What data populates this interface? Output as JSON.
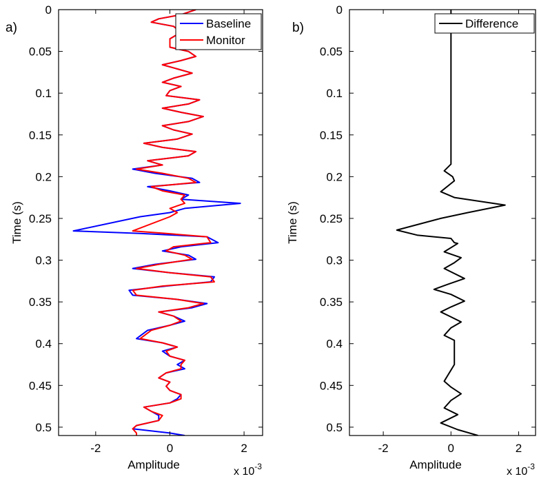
{
  "chart_data": [
    {
      "panel_label": "a)",
      "type": "line",
      "orientation": "vertical-trace",
      "xlabel": "Amplitude",
      "ylabel": "Time (s)",
      "x_scale_note": "x 10",
      "x_scale_exp": "-3",
      "xlim": [
        -3,
        2.5
      ],
      "ylim": [
        0,
        0.51
      ],
      "y_reversed": true,
      "xticks": [
        -2,
        0,
        2
      ],
      "xtick_labels": [
        "-2",
        "0",
        "2"
      ],
      "yticks": [
        0,
        0.05,
        0.1,
        0.15,
        0.2,
        0.25,
        0.3,
        0.35,
        0.4,
        0.45,
        0.5
      ],
      "ytick_labels": [
        "0",
        "0.05",
        "0.1",
        "0.15",
        "0.2",
        "0.25",
        "0.3",
        "0.35",
        "0.4",
        "0.45",
        "0.5"
      ],
      "grid": false,
      "legend_position": "top-right",
      "series": [
        {
          "name": "Baseline",
          "color": "#0000ff",
          "points": [
            [
              0.7,
              0
            ],
            [
              0.3,
              0.006
            ],
            [
              -0.3,
              0.011
            ],
            [
              -0.5,
              0.015
            ],
            [
              0.1,
              0.02
            ],
            [
              0.3,
              0.027
            ],
            [
              0.0,
              0.035
            ],
            [
              0.0,
              0.04
            ],
            [
              0.0,
              0.045
            ],
            [
              0.5,
              0.05
            ],
            [
              0.7,
              0.056
            ],
            [
              0.3,
              0.061
            ],
            [
              -0.2,
              0.066
            ],
            [
              0.2,
              0.071
            ],
            [
              0.6,
              0.076
            ],
            [
              0.1,
              0.082
            ],
            [
              -0.2,
              0.087
            ],
            [
              0.3,
              0.092
            ],
            [
              0.0,
              0.097
            ],
            [
              -0.1,
              0.103
            ],
            [
              0.8,
              0.108
            ],
            [
              0.5,
              0.113
            ],
            [
              -0.2,
              0.118
            ],
            [
              0.3,
              0.123
            ],
            [
              0.9,
              0.128
            ],
            [
              0.5,
              0.134
            ],
            [
              -0.2,
              0.139
            ],
            [
              0.1,
              0.144
            ],
            [
              0.6,
              0.149
            ],
            [
              0.2,
              0.155
            ],
            [
              -0.7,
              0.16
            ],
            [
              -0.2,
              0.165
            ],
            [
              0.7,
              0.17
            ],
            [
              0.5,
              0.175
            ],
            [
              -0.6,
              0.181
            ],
            [
              -0.2,
              0.186
            ],
            [
              -1.0,
              0.191
            ],
            [
              -0.4,
              0.196
            ],
            [
              0.6,
              0.202
            ],
            [
              0.8,
              0.207
            ],
            [
              -0.6,
              0.212
            ],
            [
              0.0,
              0.217
            ],
            [
              0.5,
              0.222
            ],
            [
              0.3,
              0.227
            ],
            [
              1.9,
              0.232
            ],
            [
              0.4,
              0.238
            ],
            [
              0.0,
              0.243
            ],
            [
              -0.8,
              0.248
            ],
            [
              -2.6,
              0.265
            ],
            [
              -0.8,
              0.268
            ],
            [
              1.0,
              0.272
            ],
            [
              1.3,
              0.279
            ],
            [
              0.3,
              0.284
            ],
            [
              -0.2,
              0.289
            ],
            [
              0.5,
              0.294
            ],
            [
              0.7,
              0.299
            ],
            [
              -0.4,
              0.305
            ],
            [
              -1.0,
              0.31
            ],
            [
              0.0,
              0.315
            ],
            [
              1.2,
              0.32
            ],
            [
              1.1,
              0.326
            ],
            [
              -0.1,
              0.331
            ],
            [
              -1.1,
              0.336
            ],
            [
              -1.0,
              0.342
            ],
            [
              0.2,
              0.347
            ],
            [
              1.0,
              0.352
            ],
            [
              0.6,
              0.357
            ],
            [
              -0.3,
              0.362
            ],
            [
              0.1,
              0.367
            ],
            [
              0.4,
              0.373
            ],
            [
              0.0,
              0.378
            ],
            [
              -0.6,
              0.384
            ],
            [
              -0.9,
              0.394
            ],
            [
              -0.2,
              0.399
            ],
            [
              0.2,
              0.404
            ],
            [
              -0.2,
              0.409
            ],
            [
              0.0,
              0.415
            ],
            [
              0.4,
              0.42
            ],
            [
              0.2,
              0.425
            ],
            [
              0.4,
              0.43
            ],
            [
              -0.1,
              0.435
            ],
            [
              -0.3,
              0.441
            ],
            [
              0.0,
              0.446
            ],
            [
              -0.1,
              0.451
            ],
            [
              0.0,
              0.456
            ],
            [
              0.3,
              0.461
            ],
            [
              0.2,
              0.466
            ],
            [
              0.0,
              0.471
            ],
            [
              -0.7,
              0.476
            ],
            [
              -0.5,
              0.481
            ],
            [
              -0.3,
              0.486
            ],
            [
              -0.3,
              0.492
            ],
            [
              -0.9,
              0.498
            ],
            [
              -1.0,
              0.502
            ],
            [
              0.0,
              0.507
            ],
            [
              0.4,
              0.51
            ]
          ]
        },
        {
          "name": "Monitor",
          "color": "#ff0000",
          "points": [
            [
              0.7,
              0
            ],
            [
              0.3,
              0.006
            ],
            [
              -0.3,
              0.011
            ],
            [
              -0.5,
              0.015
            ],
            [
              0.1,
              0.02
            ],
            [
              0.3,
              0.027
            ],
            [
              0.0,
              0.035
            ],
            [
              0.0,
              0.04
            ],
            [
              0.0,
              0.045
            ],
            [
              0.5,
              0.05
            ],
            [
              0.7,
              0.056
            ],
            [
              0.3,
              0.061
            ],
            [
              -0.2,
              0.066
            ],
            [
              0.2,
              0.071
            ],
            [
              0.6,
              0.076
            ],
            [
              0.1,
              0.082
            ],
            [
              -0.2,
              0.087
            ],
            [
              0.3,
              0.092
            ],
            [
              0.0,
              0.097
            ],
            [
              -0.1,
              0.103
            ],
            [
              0.8,
              0.108
            ],
            [
              0.5,
              0.113
            ],
            [
              -0.2,
              0.118
            ],
            [
              0.3,
              0.123
            ],
            [
              0.9,
              0.128
            ],
            [
              0.5,
              0.134
            ],
            [
              -0.2,
              0.139
            ],
            [
              0.1,
              0.144
            ],
            [
              0.6,
              0.149
            ],
            [
              0.2,
              0.155
            ],
            [
              -0.7,
              0.16
            ],
            [
              -0.2,
              0.165
            ],
            [
              0.7,
              0.17
            ],
            [
              0.5,
              0.175
            ],
            [
              -0.6,
              0.181
            ],
            [
              -0.2,
              0.186
            ],
            [
              -0.9,
              0.191
            ],
            [
              -0.2,
              0.196
            ],
            [
              0.5,
              0.202
            ],
            [
              0.7,
              0.207
            ],
            [
              -0.5,
              0.212
            ],
            [
              -0.2,
              0.217
            ],
            [
              0.4,
              0.222
            ],
            [
              0.3,
              0.227
            ],
            [
              0.4,
              0.232
            ],
            [
              0.0,
              0.238
            ],
            [
              0.2,
              0.243
            ],
            [
              0.0,
              0.248
            ],
            [
              -1.0,
              0.265
            ],
            [
              -0.1,
              0.268
            ],
            [
              1.0,
              0.272
            ],
            [
              1.1,
              0.279
            ],
            [
              0.1,
              0.284
            ],
            [
              -0.1,
              0.289
            ],
            [
              0.4,
              0.294
            ],
            [
              0.6,
              0.299
            ],
            [
              -0.3,
              0.305
            ],
            [
              -0.9,
              0.31
            ],
            [
              0.0,
              0.315
            ],
            [
              1.1,
              0.32
            ],
            [
              1.2,
              0.326
            ],
            [
              -0.2,
              0.331
            ],
            [
              -1.0,
              0.336
            ],
            [
              -0.9,
              0.342
            ],
            [
              0.2,
              0.347
            ],
            [
              0.9,
              0.352
            ],
            [
              0.5,
              0.357
            ],
            [
              -0.3,
              0.362
            ],
            [
              0.1,
              0.367
            ],
            [
              0.3,
              0.373
            ],
            [
              0.0,
              0.378
            ],
            [
              -0.5,
              0.384
            ],
            [
              -0.8,
              0.394
            ],
            [
              -0.2,
              0.399
            ],
            [
              0.2,
              0.404
            ],
            [
              -0.1,
              0.409
            ],
            [
              0.0,
              0.415
            ],
            [
              0.4,
              0.42
            ],
            [
              0.3,
              0.425
            ],
            [
              0.3,
              0.43
            ],
            [
              -0.1,
              0.435
            ],
            [
              -0.3,
              0.441
            ],
            [
              0.0,
              0.446
            ],
            [
              -0.1,
              0.451
            ],
            [
              0.0,
              0.456
            ],
            [
              0.3,
              0.461
            ],
            [
              0.3,
              0.466
            ],
            [
              0.0,
              0.471
            ],
            [
              -0.7,
              0.476
            ],
            [
              -0.5,
              0.481
            ],
            [
              -0.2,
              0.486
            ],
            [
              -0.3,
              0.492
            ],
            [
              -0.9,
              0.498
            ],
            [
              -1.0,
              0.502
            ],
            [
              -0.9,
              0.507
            ],
            [
              -0.9,
              0.51
            ]
          ]
        }
      ]
    },
    {
      "panel_label": "b)",
      "type": "line",
      "orientation": "vertical-trace",
      "xlabel": "Amplitude",
      "ylabel": "Time (s)",
      "x_scale_note": "x 10",
      "x_scale_exp": "-3",
      "xlim": [
        -3,
        2.5
      ],
      "ylim": [
        0,
        0.51
      ],
      "y_reversed": true,
      "xticks": [
        -2,
        0,
        2
      ],
      "xtick_labels": [
        "-2",
        "0",
        "2"
      ],
      "yticks": [
        0,
        0.05,
        0.1,
        0.15,
        0.2,
        0.25,
        0.3,
        0.35,
        0.4,
        0.45,
        0.5
      ],
      "ytick_labels": [
        "0",
        "0.05",
        "0.1",
        "0.15",
        "0.2",
        "0.25",
        "0.3",
        "0.35",
        "0.4",
        "0.45",
        "0.5"
      ],
      "grid": false,
      "legend_position": "top-right",
      "series": [
        {
          "name": "Difference",
          "color": "#000000",
          "points": [
            [
              0.0,
              0
            ],
            [
              0.0,
              0.185
            ],
            [
              -0.2,
              0.193
            ],
            [
              0.05,
              0.2
            ],
            [
              0.1,
              0.205
            ],
            [
              -0.3,
              0.218
            ],
            [
              0.1,
              0.225
            ],
            [
              1.6,
              0.234
            ],
            [
              0.5,
              0.243
            ],
            [
              -0.3,
              0.25
            ],
            [
              -1.6,
              0.264
            ],
            [
              -1.0,
              0.27
            ],
            [
              0.0,
              0.274
            ],
            [
              0.1,
              0.279
            ],
            [
              0.2,
              0.28
            ],
            [
              -0.2,
              0.29
            ],
            [
              0.3,
              0.297
            ],
            [
              0.1,
              0.303
            ],
            [
              -0.2,
              0.31
            ],
            [
              0.4,
              0.322
            ],
            [
              -0.1,
              0.329
            ],
            [
              -0.5,
              0.335
            ],
            [
              0.0,
              0.341
            ],
            [
              0.4,
              0.349
            ],
            [
              0.0,
              0.356
            ],
            [
              -0.3,
              0.362
            ],
            [
              0.0,
              0.368
            ],
            [
              0.3,
              0.374
            ],
            [
              0.0,
              0.381
            ],
            [
              -0.2,
              0.39
            ],
            [
              0.1,
              0.396
            ],
            [
              0.1,
              0.41
            ],
            [
              0.1,
              0.425
            ],
            [
              -0.2,
              0.445
            ],
            [
              0.0,
              0.452
            ],
            [
              0.3,
              0.46
            ],
            [
              0.0,
              0.468
            ],
            [
              -0.2,
              0.477
            ],
            [
              0.2,
              0.485
            ],
            [
              -0.3,
              0.495
            ],
            [
              0.2,
              0.503
            ],
            [
              0.8,
              0.51
            ]
          ]
        }
      ]
    }
  ]
}
